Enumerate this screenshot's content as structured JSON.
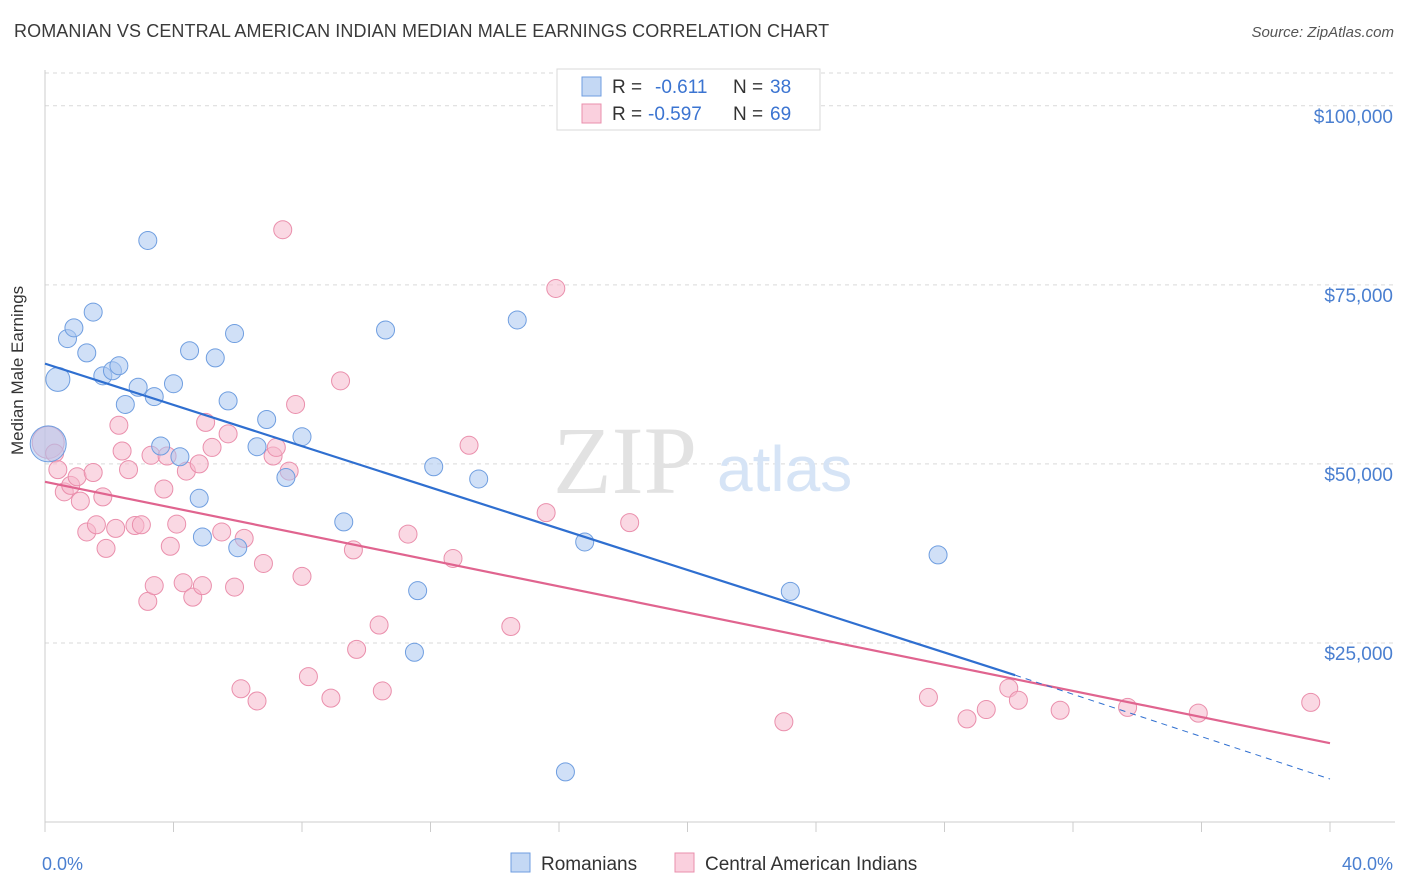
{
  "header": {
    "title": "ROMANIAN VS CENTRAL AMERICAN INDIAN MEDIAN MALE EARNINGS CORRELATION CHART",
    "source": "Source: ZipAtlas.com"
  },
  "watermark": {
    "part1": "ZIP",
    "part2": "atlas"
  },
  "legend": {
    "rows": [
      {
        "r_label": "R =",
        "r_value": "-0.611",
        "n_label": "N =",
        "n_value": "38",
        "color": "#a9c6f0"
      },
      {
        "r_label": "R =",
        "r_value": "-0.597",
        "n_label": "N =",
        "n_value": "69",
        "color": "#f6b8cc"
      }
    ]
  },
  "bottom_legend": [
    {
      "label": "Romanians",
      "color": "#a9c6f0"
    },
    {
      "label": "Central American Indians",
      "color": "#f6b8cc"
    }
  ],
  "chart_data": {
    "type": "scatter",
    "title": "ROMANIAN VS CENTRAL AMERICAN INDIAN MEDIAN MALE EARNINGS CORRELATION CHART",
    "xlabel": "",
    "ylabel": "Median Male Earnings",
    "xlim": [
      0,
      40
    ],
    "ylim": [
      0,
      105000
    ],
    "x_tick_labels": [
      {
        "value": 0,
        "label": "0.0%"
      },
      {
        "value": 40,
        "label": "40.0%"
      }
    ],
    "y_tick_labels": [
      {
        "value": 25000,
        "label": "$25,000"
      },
      {
        "value": 50000,
        "label": "$50,000"
      },
      {
        "value": 75000,
        "label": "$75,000"
      },
      {
        "value": 100000,
        "label": "$100,000"
      }
    ],
    "grid": "horizontal dashed",
    "legend_position": "top-center",
    "series": [
      {
        "name": "Romanians",
        "color": "#a9c6f0",
        "stroke": "#6f9ee0",
        "trend_color": "#2f6fd0",
        "trend": {
          "x0": 0,
          "y0": 64000,
          "x1": 30.2,
          "y1": 20500,
          "dash_to_x": 40,
          "dash_to_y": 6000
        },
        "points": [
          [
            0.1,
            52800,
            18
          ],
          [
            0.4,
            61800,
            12
          ],
          [
            0.7,
            67500,
            9
          ],
          [
            0.9,
            69000,
            9
          ],
          [
            1.3,
            65500,
            9
          ],
          [
            1.5,
            71200,
            9
          ],
          [
            1.8,
            62300,
            9
          ],
          [
            2.1,
            63000,
            9
          ],
          [
            2.3,
            63700,
            9
          ],
          [
            2.5,
            58300,
            9
          ],
          [
            2.9,
            60700,
            9
          ],
          [
            3.2,
            81200,
            9
          ],
          [
            3.4,
            59400,
            9
          ],
          [
            3.6,
            52500,
            9
          ],
          [
            4.0,
            61200,
            9
          ],
          [
            4.2,
            51000,
            9
          ],
          [
            4.5,
            65800,
            9
          ],
          [
            4.8,
            45200,
            9
          ],
          [
            4.9,
            39800,
            9
          ],
          [
            5.3,
            64800,
            9
          ],
          [
            5.7,
            58800,
            9
          ],
          [
            5.9,
            68200,
            9
          ],
          [
            6.0,
            38300,
            9
          ],
          [
            6.6,
            52400,
            9
          ],
          [
            6.9,
            56200,
            9
          ],
          [
            7.5,
            48100,
            9
          ],
          [
            8.0,
            53800,
            9
          ],
          [
            9.3,
            41900,
            9
          ],
          [
            10.6,
            68700,
            9
          ],
          [
            11.6,
            32300,
            9
          ],
          [
            11.5,
            23700,
            9
          ],
          [
            12.1,
            49600,
            9
          ],
          [
            13.5,
            47900,
            9
          ],
          [
            14.7,
            70100,
            9
          ],
          [
            16.2,
            7000,
            9
          ],
          [
            16.8,
            39100,
            9
          ],
          [
            23.2,
            32200,
            9
          ],
          [
            27.8,
            37300,
            9
          ]
        ]
      },
      {
        "name": "Central American Indians",
        "color": "#f6b8cc",
        "stroke": "#ea8fac",
        "trend_color": "#e0648f",
        "trend": {
          "x0": 0,
          "y0": 47500,
          "x1": 40,
          "y1": 11000
        },
        "points": [
          [
            0.1,
            53000,
            16
          ],
          [
            0.3,
            51500,
            9
          ],
          [
            0.4,
            49200,
            9
          ],
          [
            0.6,
            46100,
            9
          ],
          [
            0.8,
            47000,
            9
          ],
          [
            1.0,
            48200,
            9
          ],
          [
            1.1,
            44800,
            9
          ],
          [
            1.3,
            40500,
            9
          ],
          [
            1.5,
            48800,
            9
          ],
          [
            1.6,
            41500,
            9
          ],
          [
            1.8,
            45400,
            9
          ],
          [
            1.9,
            38200,
            9
          ],
          [
            2.2,
            41000,
            9
          ],
          [
            2.3,
            55400,
            9
          ],
          [
            2.4,
            51800,
            9
          ],
          [
            2.6,
            49200,
            9
          ],
          [
            2.8,
            41400,
            9
          ],
          [
            3.0,
            41500,
            9
          ],
          [
            3.2,
            30800,
            9
          ],
          [
            3.3,
            51200,
            9
          ],
          [
            3.4,
            33000,
            9
          ],
          [
            3.7,
            46500,
            9
          ],
          [
            3.8,
            51100,
            9
          ],
          [
            3.9,
            38500,
            9
          ],
          [
            4.1,
            41600,
            9
          ],
          [
            4.3,
            33400,
            9
          ],
          [
            4.4,
            49000,
            9
          ],
          [
            4.6,
            31400,
            9
          ],
          [
            4.8,
            50000,
            9
          ],
          [
            4.9,
            33000,
            9
          ],
          [
            5.0,
            55800,
            9
          ],
          [
            5.2,
            52300,
            9
          ],
          [
            5.5,
            40500,
            9
          ],
          [
            5.7,
            54200,
            9
          ],
          [
            5.9,
            32800,
            9
          ],
          [
            6.2,
            39600,
            9
          ],
          [
            6.1,
            18600,
            9
          ],
          [
            6.6,
            16900,
            9
          ],
          [
            6.8,
            36100,
            9
          ],
          [
            7.1,
            51100,
            9
          ],
          [
            7.2,
            52300,
            9
          ],
          [
            7.4,
            82700,
            9
          ],
          [
            7.6,
            49000,
            9
          ],
          [
            7.8,
            58300,
            9
          ],
          [
            8.0,
            34300,
            9
          ],
          [
            8.2,
            20300,
            9
          ],
          [
            8.9,
            17300,
            9
          ],
          [
            9.2,
            61600,
            9
          ],
          [
            9.6,
            38000,
            9
          ],
          [
            9.7,
            24100,
            9
          ],
          [
            10.4,
            27500,
            9
          ],
          [
            10.5,
            18300,
            9
          ],
          [
            11.3,
            40200,
            9
          ],
          [
            12.7,
            36800,
            9
          ],
          [
            13.2,
            52600,
            9
          ],
          [
            14.5,
            27300,
            9
          ],
          [
            15.6,
            43200,
            9
          ],
          [
            15.9,
            74500,
            9
          ],
          [
            18.2,
            41800,
            9
          ],
          [
            23.0,
            14000,
            9
          ],
          [
            27.5,
            17400,
            9
          ],
          [
            28.7,
            14400,
            9
          ],
          [
            29.3,
            15700,
            9
          ],
          [
            30.0,
            18700,
            9
          ],
          [
            30.3,
            17000,
            9
          ],
          [
            31.6,
            15600,
            9
          ],
          [
            33.7,
            16000,
            9
          ],
          [
            35.9,
            15200,
            9
          ],
          [
            39.4,
            16700,
            9
          ]
        ]
      }
    ]
  }
}
